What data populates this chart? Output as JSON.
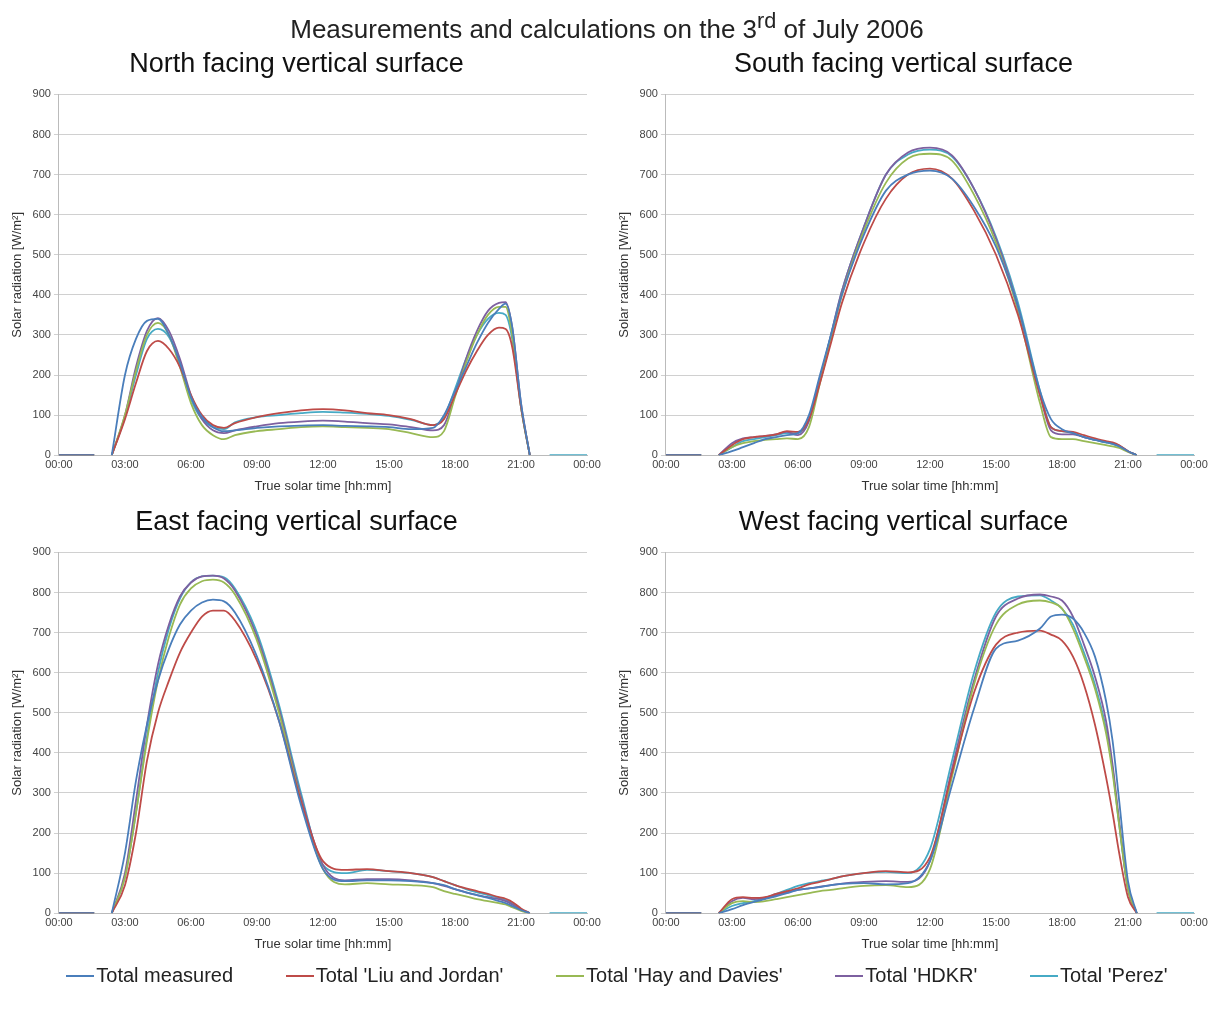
{
  "chart_data": [
    {
      "type": "line",
      "title": "North facing vertical surface",
      "xlabel": "True solar time [hh:mm]",
      "ylabel": "Solar radiation [W/m²]",
      "annotations": [
        "Measurements and calculations on the 3$^{rd}$ of July 2006"
      ],
      "marker": "none",
      "grid": "y",
      "xlim": [
        0,
        24
      ],
      "ylim": [
        0,
        900
      ],
      "xticks": [
        {
          "value": 0,
          "label": "00:00"
        },
        {
          "value": 3,
          "label": "03:00"
        },
        {
          "value": 6,
          "label": "06:00"
        },
        {
          "value": 9,
          "label": "09:00"
        },
        {
          "value": 12,
          "label": "12:00"
        },
        {
          "value": 15,
          "label": "15:00"
        },
        {
          "value": 18,
          "label": "18:00"
        },
        {
          "value": 21,
          "label": "21:00"
        },
        {
          "value": 24,
          "label": "00:00"
        }
      ],
      "yticks": [
        0,
        100,
        200,
        300,
        400,
        500,
        600,
        700,
        800,
        900
      ],
      "x": [
        0,
        1.6,
        2,
        2.4,
        3,
        3.5,
        4,
        4.5,
        5,
        5.5,
        6,
        6.5,
        7,
        7.5,
        8,
        9,
        10,
        11,
        12,
        13,
        14,
        15,
        16,
        17,
        17.5,
        18,
        18.5,
        19,
        19.5,
        20,
        20.3,
        20.6,
        21,
        21.4,
        22,
        22.3,
        24
      ],
      "series": [
        {
          "color": "#4a7ebb",
          "values": [
            0,
            0,
            null,
            0,
            200,
            290,
            335,
            340,
            300,
            230,
            145,
            95,
            70,
            60,
            62,
            68,
            72,
            74,
            75,
            73,
            72,
            70,
            65,
            68,
            100,
            160,
            220,
            280,
            330,
            365,
            378,
            320,
            130,
            0,
            null,
            null,
            null
          ]
        },
        {
          "color": "#be4b48",
          "values": [
            0,
            0,
            null,
            0,
            90,
            180,
            260,
            285,
            265,
            220,
            150,
            100,
            75,
            68,
            80,
            95,
            105,
            112,
            115,
            112,
            105,
            100,
            90,
            75,
            90,
            150,
            210,
            260,
            300,
            318,
            315,
            270,
            120,
            0,
            null,
            null,
            null
          ]
        },
        {
          "color": "#98b954",
          "values": [
            0,
            0,
            null,
            0,
            100,
            210,
            300,
            330,
            300,
            220,
            130,
            75,
            50,
            40,
            50,
            60,
            65,
            70,
            72,
            70,
            68,
            65,
            55,
            45,
            60,
            145,
            230,
            300,
            350,
            370,
            370,
            300,
            120,
            0,
            null,
            null,
            null
          ]
        },
        {
          "color": "#7d60a0",
          "values": [
            0,
            0,
            null,
            0,
            100,
            220,
            310,
            342,
            310,
            240,
            150,
            90,
            62,
            55,
            62,
            72,
            80,
            84,
            86,
            84,
            80,
            77,
            70,
            62,
            75,
            150,
            240,
            310,
            360,
            380,
            382,
            320,
            130,
            0,
            null,
            null,
            null
          ]
        },
        {
          "color": "#46aac5",
          "values": [
            0,
            0,
            null,
            0,
            95,
            200,
            290,
            315,
            295,
            230,
            140,
            90,
            70,
            65,
            82,
            95,
            100,
            105,
            108,
            106,
            103,
            98,
            88,
            75,
            95,
            165,
            240,
            300,
            340,
            355,
            350,
            290,
            120,
            0,
            null,
            0,
            0
          ]
        }
      ]
    },
    {
      "type": "line",
      "title": "South facing vertical surface",
      "xlabel": "True solar time [hh:mm]",
      "ylabel": "Solar radiation [W/m²]",
      "marker": "none",
      "grid": "y",
      "xlim": [
        0,
        24
      ],
      "ylim": [
        0,
        900
      ],
      "xticks": [
        {
          "value": 0,
          "label": "00:00"
        },
        {
          "value": 3,
          "label": "03:00"
        },
        {
          "value": 6,
          "label": "06:00"
        },
        {
          "value": 9,
          "label": "09:00"
        },
        {
          "value": 12,
          "label": "12:00"
        },
        {
          "value": 15,
          "label": "15:00"
        },
        {
          "value": 18,
          "label": "18:00"
        },
        {
          "value": 21,
          "label": "21:00"
        },
        {
          "value": 24,
          "label": "00:00"
        }
      ],
      "yticks": [
        0,
        100,
        200,
        300,
        400,
        500,
        600,
        700,
        800,
        900
      ],
      "x": [
        0,
        1.6,
        2,
        2.4,
        3,
        3.5,
        4,
        4.5,
        5,
        5.5,
        6,
        6.5,
        7,
        7.5,
        8,
        9,
        10,
        11,
        12,
        13,
        14,
        15,
        16,
        17,
        17.5,
        18,
        18.5,
        19,
        19.5,
        20,
        20.3,
        20.6,
        21,
        21.4,
        22,
        22.3,
        24
      ],
      "series": [
        {
          "color": "#4a7ebb",
          "values": [
            0,
            0,
            null,
            0,
            10,
            20,
            30,
            40,
            45,
            50,
            55,
            100,
            200,
            300,
            400,
            550,
            660,
            700,
            710,
            690,
            620,
            520,
            370,
            160,
            90,
            65,
            55,
            45,
            38,
            32,
            28,
            22,
            10,
            0,
            null,
            null,
            null
          ]
        },
        {
          "color": "#be4b48",
          "values": [
            0,
            0,
            null,
            0,
            25,
            40,
            45,
            48,
            52,
            60,
            58,
            90,
            180,
            280,
            380,
            530,
            640,
            700,
            715,
            690,
            610,
            500,
            350,
            150,
            70,
            60,
            58,
            50,
            42,
            35,
            32,
            25,
            10,
            0,
            null,
            null,
            null
          ]
        },
        {
          "color": "#98b954",
          "values": [
            0,
            0,
            null,
            0,
            20,
            30,
            35,
            38,
            40,
            42,
            40,
            70,
            180,
            290,
            400,
            560,
            680,
            740,
            752,
            735,
            650,
            530,
            360,
            130,
            45,
            40,
            40,
            35,
            30,
            25,
            22,
            18,
            8,
            0,
            null,
            null,
            null
          ]
        },
        {
          "color": "#7d60a0",
          "values": [
            0,
            0,
            null,
            0,
            30,
            42,
            45,
            48,
            52,
            58,
            50,
            85,
            190,
            300,
            410,
            570,
            700,
            755,
            767,
            748,
            665,
            540,
            370,
            150,
            62,
            52,
            52,
            45,
            38,
            33,
            30,
            24,
            10,
            0,
            null,
            null,
            null
          ]
        },
        {
          "color": "#46aac5",
          "values": [
            0,
            0,
            null,
            0,
            20,
            35,
            40,
            45,
            50,
            55,
            55,
            90,
            190,
            300,
            410,
            570,
            700,
            750,
            762,
            745,
            665,
            545,
            380,
            160,
            70,
            60,
            55,
            45,
            38,
            32,
            28,
            22,
            10,
            0,
            null,
            0,
            0
          ]
        }
      ]
    },
    {
      "type": "line",
      "title": "East facing vertical surface",
      "xlabel": "True solar time [hh:mm]",
      "ylabel": "Solar radiation [W/m²]",
      "marker": "none",
      "grid": "y",
      "xlim": [
        0,
        24
      ],
      "ylim": [
        0,
        900
      ],
      "xticks": [
        {
          "value": 0,
          "label": "00:00"
        },
        {
          "value": 3,
          "label": "03:00"
        },
        {
          "value": 6,
          "label": "06:00"
        },
        {
          "value": 9,
          "label": "09:00"
        },
        {
          "value": 12,
          "label": "12:00"
        },
        {
          "value": 15,
          "label": "15:00"
        },
        {
          "value": 18,
          "label": "18:00"
        },
        {
          "value": 21,
          "label": "21:00"
        },
        {
          "value": 24,
          "label": "00:00"
        }
      ],
      "yticks": [
        0,
        100,
        200,
        300,
        400,
        500,
        600,
        700,
        800,
        900
      ],
      "x": [
        0,
        1.6,
        2,
        2.4,
        3,
        3.5,
        4,
        4.5,
        5,
        5.5,
        6,
        6.5,
        7,
        7.5,
        8,
        9,
        10,
        11,
        12,
        13,
        14,
        15,
        16,
        17,
        17.5,
        18,
        18.5,
        19,
        19.5,
        20,
        20.3,
        20.6,
        21,
        21.4,
        22,
        22.3,
        24
      ],
      "series": [
        {
          "color": "#4a7ebb",
          "values": [
            0,
            0,
            null,
            0,
            150,
            330,
            470,
            580,
            660,
            720,
            755,
            775,
            782,
            778,
            750,
            640,
            480,
            270,
            110,
            80,
            82,
            82,
            80,
            75,
            70,
            60,
            52,
            45,
            38,
            30,
            25,
            18,
            8,
            0,
            null,
            null,
            null
          ]
        },
        {
          "color": "#be4b48",
          "values": [
            0,
            0,
            null,
            0,
            70,
            200,
            380,
            500,
            580,
            650,
            700,
            740,
            755,
            755,
            730,
            630,
            480,
            280,
            130,
            108,
            110,
            105,
            100,
            90,
            80,
            70,
            62,
            55,
            48,
            40,
            36,
            28,
            12,
            0,
            null,
            null,
            null
          ]
        },
        {
          "color": "#98b954",
          "values": [
            0,
            0,
            null,
            0,
            90,
            250,
            430,
            580,
            690,
            770,
            810,
            828,
            832,
            825,
            795,
            680,
            500,
            280,
            110,
            72,
            75,
            72,
            70,
            65,
            55,
            48,
            42,
            35,
            30,
            25,
            22,
            15,
            6,
            0,
            null,
            null,
            null
          ]
        },
        {
          "color": "#7d60a0",
          "values": [
            0,
            0,
            null,
            0,
            100,
            280,
            470,
            620,
            720,
            790,
            825,
            840,
            842,
            835,
            805,
            690,
            510,
            290,
            120,
            82,
            85,
            85,
            82,
            75,
            68,
            60,
            52,
            45,
            40,
            35,
            30,
            22,
            8,
            0,
            null,
            null,
            null
          ]
        },
        {
          "color": "#46aac5",
          "values": [
            0,
            0,
            null,
            0,
            90,
            250,
            440,
            600,
            710,
            785,
            825,
            840,
            842,
            838,
            810,
            700,
            520,
            300,
            120,
            100,
            108,
            105,
            100,
            90,
            80,
            70,
            60,
            52,
            45,
            38,
            33,
            25,
            10,
            0,
            null,
            0,
            0
          ]
        }
      ]
    },
    {
      "type": "line",
      "title": "West facing vertical surface",
      "xlabel": "True solar time [hh:mm]",
      "ylabel": "Solar radiation [W/m²]",
      "marker": "none",
      "grid": "y",
      "legend": "bottom",
      "xlim": [
        0,
        24
      ],
      "ylim": [
        0,
        900
      ],
      "xticks": [
        {
          "value": 0,
          "label": "00:00"
        },
        {
          "value": 3,
          "label": "03:00"
        },
        {
          "value": 6,
          "label": "06:00"
        },
        {
          "value": 9,
          "label": "09:00"
        },
        {
          "value": 12,
          "label": "12:00"
        },
        {
          "value": 15,
          "label": "15:00"
        },
        {
          "value": 18,
          "label": "18:00"
        },
        {
          "value": 21,
          "label": "21:00"
        },
        {
          "value": 24,
          "label": "00:00"
        }
      ],
      "yticks": [
        0,
        100,
        200,
        300,
        400,
        500,
        600,
        700,
        800,
        900
      ],
      "x": [
        0,
        1.6,
        2,
        2.4,
        3,
        3.5,
        4,
        4.5,
        5,
        5.5,
        6,
        6.5,
        7,
        7.5,
        8,
        9,
        10,
        11,
        12,
        13,
        14,
        15,
        16,
        17,
        17.5,
        18,
        18.5,
        19,
        19.5,
        20,
        20.3,
        20.6,
        21,
        21.4,
        22,
        22.3,
        24
      ],
      "series": [
        {
          "name": "Total measured",
          "color": "#4a7ebb",
          "values": [
            0,
            0,
            null,
            0,
            10,
            20,
            28,
            35,
            42,
            50,
            58,
            62,
            65,
            70,
            73,
            75,
            72,
            75,
            130,
            320,
            510,
            660,
            680,
            710,
            740,
            745,
            735,
            700,
            640,
            530,
            430,
            280,
            80,
            0,
            null,
            null,
            null
          ]
        },
        {
          "name": "Total 'Liu and Jordan'",
          "color": "#be4b48",
          "values": [
            0,
            0,
            null,
            0,
            35,
            40,
            38,
            40,
            48,
            55,
            62,
            72,
            78,
            85,
            92,
            100,
            105,
            102,
            140,
            350,
            550,
            670,
            700,
            705,
            695,
            680,
            640,
            570,
            470,
            340,
            250,
            150,
            40,
            0,
            null,
            null,
            null
          ]
        },
        {
          "name": "Total 'Hay and Davies'",
          "color": "#98b954",
          "values": [
            0,
            0,
            null,
            0,
            25,
            30,
            28,
            30,
            35,
            40,
            45,
            50,
            55,
            58,
            62,
            68,
            70,
            65,
            110,
            340,
            570,
            720,
            770,
            780,
            775,
            760,
            710,
            640,
            560,
            450,
            350,
            220,
            60,
            0,
            null,
            null,
            null
          ]
        },
        {
          "name": "Total 'HDKR'",
          "color": "#7d60a0",
          "values": [
            0,
            0,
            null,
            0,
            30,
            38,
            35,
            38,
            45,
            52,
            58,
            62,
            66,
            70,
            74,
            78,
            80,
            78,
            130,
            360,
            580,
            740,
            785,
            795,
            790,
            780,
            740,
            670,
            590,
            480,
            370,
            230,
            60,
            0,
            null,
            null,
            null
          ]
        },
        {
          "name": "Total 'Perez'",
          "color": "#46aac5",
          "values": [
            0,
            0,
            null,
            0,
            18,
            25,
            30,
            38,
            48,
            58,
            68,
            75,
            80,
            85,
            92,
            100,
            103,
            100,
            160,
            380,
            600,
            750,
            790,
            793,
            780,
            760,
            720,
            650,
            570,
            460,
            360,
            220,
            60,
            0,
            null,
            0,
            0
          ]
        }
      ]
    }
  ]
}
